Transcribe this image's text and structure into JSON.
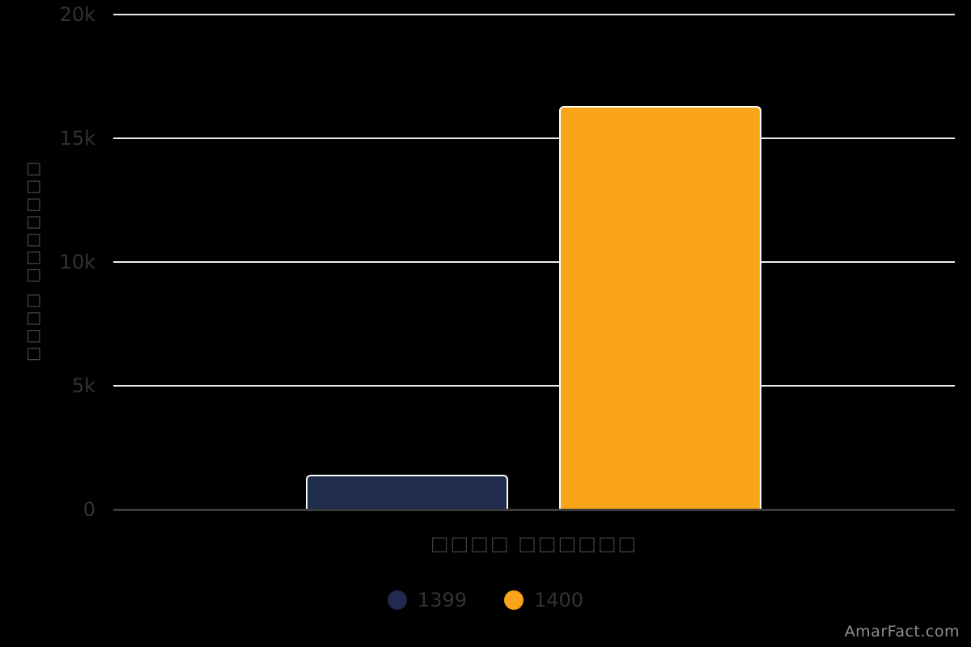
{
  "chart_data": {
    "type": "bar",
    "title": "",
    "xlabel": "□□□□ □□□□□□",
    "ylabel": "□□□□ □□□□□□□",
    "categories": [
      "□□□□ □□□□□□"
    ],
    "series": [
      {
        "name": "1399",
        "values": [
          1400
        ],
        "color": "#1F2C4D"
      },
      {
        "name": "1400",
        "values": [
          16300
        ],
        "color": "#FAA41A"
      }
    ],
    "ylim": [
      0,
      20000
    ],
    "ytick_labels": [
      "0",
      "5k",
      "10k",
      "15k",
      "20k"
    ],
    "grid": "horizontal",
    "legend_position": "bottom-center"
  },
  "colors": {
    "background": "#000000",
    "gridline": "#ececec",
    "axis_line": "#3b3b3b",
    "tick_label": "#333333",
    "axis_title": "#3c3c3c",
    "bar_outline": "#ffffff",
    "watermark": "#8e8e8e"
  },
  "watermark": "AmarFact.com"
}
